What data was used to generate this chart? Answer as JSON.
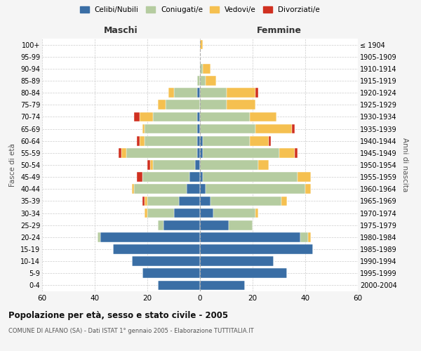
{
  "age_groups": [
    "0-4",
    "5-9",
    "10-14",
    "15-19",
    "20-24",
    "25-29",
    "30-34",
    "35-39",
    "40-44",
    "45-49",
    "50-54",
    "55-59",
    "60-64",
    "65-69",
    "70-74",
    "75-79",
    "80-84",
    "85-89",
    "90-94",
    "95-99",
    "100+"
  ],
  "birth_years": [
    "2000-2004",
    "1995-1999",
    "1990-1994",
    "1985-1989",
    "1980-1984",
    "1975-1979",
    "1970-1974",
    "1965-1969",
    "1960-1964",
    "1955-1959",
    "1950-1954",
    "1945-1949",
    "1940-1944",
    "1935-1939",
    "1930-1934",
    "1925-1929",
    "1920-1924",
    "1915-1919",
    "1910-1914",
    "1905-1909",
    "≤ 1904"
  ],
  "male": {
    "celibi": [
      16,
      22,
      26,
      33,
      38,
      14,
      10,
      8,
      5,
      4,
      2,
      1,
      1,
      1,
      1,
      0,
      1,
      0,
      0,
      0,
      0
    ],
    "coniugati": [
      0,
      0,
      0,
      0,
      1,
      2,
      10,
      12,
      20,
      18,
      16,
      27,
      20,
      20,
      17,
      13,
      9,
      1,
      0,
      0,
      0
    ],
    "vedovi": [
      0,
      0,
      0,
      0,
      0,
      0,
      1,
      1,
      1,
      0,
      1,
      2,
      2,
      1,
      5,
      3,
      2,
      0,
      0,
      0,
      0
    ],
    "divorziati": [
      0,
      0,
      0,
      0,
      0,
      0,
      0,
      1,
      0,
      2,
      1,
      1,
      1,
      0,
      2,
      0,
      0,
      0,
      0,
      0,
      0
    ]
  },
  "female": {
    "nubili": [
      17,
      33,
      28,
      43,
      38,
      11,
      5,
      4,
      2,
      1,
      0,
      1,
      1,
      0,
      0,
      0,
      0,
      0,
      0,
      0,
      0
    ],
    "coniugate": [
      0,
      0,
      0,
      0,
      3,
      9,
      16,
      27,
      38,
      36,
      22,
      29,
      18,
      21,
      19,
      10,
      10,
      2,
      1,
      0,
      0
    ],
    "vedove": [
      0,
      0,
      0,
      0,
      1,
      0,
      1,
      2,
      2,
      5,
      4,
      6,
      7,
      14,
      10,
      11,
      11,
      4,
      3,
      0,
      1
    ],
    "divorziate": [
      0,
      0,
      0,
      0,
      0,
      0,
      0,
      0,
      0,
      0,
      0,
      1,
      1,
      1,
      0,
      0,
      1,
      0,
      0,
      0,
      0
    ]
  },
  "colors": {
    "celibi": "#3a6ea5",
    "coniugati": "#b5cca0",
    "vedovi": "#f5c050",
    "divorziati": "#d03020"
  },
  "title": "Popolazione per età, sesso e stato civile - 2005",
  "subtitle": "COMUNE DI ALFANO (SA) - Dati ISTAT 1° gennaio 2005 - Elaborazione TUTTITALIA.IT",
  "xlabel_left": "Maschi",
  "xlabel_right": "Femmine",
  "ylabel_left": "Fasce di età",
  "ylabel_right": "Anni di nascita",
  "xlim": 60,
  "legend_labels": [
    "Celibi/Nubili",
    "Coniugati/e",
    "Vedovi/e",
    "Divorziati/e"
  ],
  "bg_color": "#f5f5f5",
  "plot_bg": "#ffffff"
}
